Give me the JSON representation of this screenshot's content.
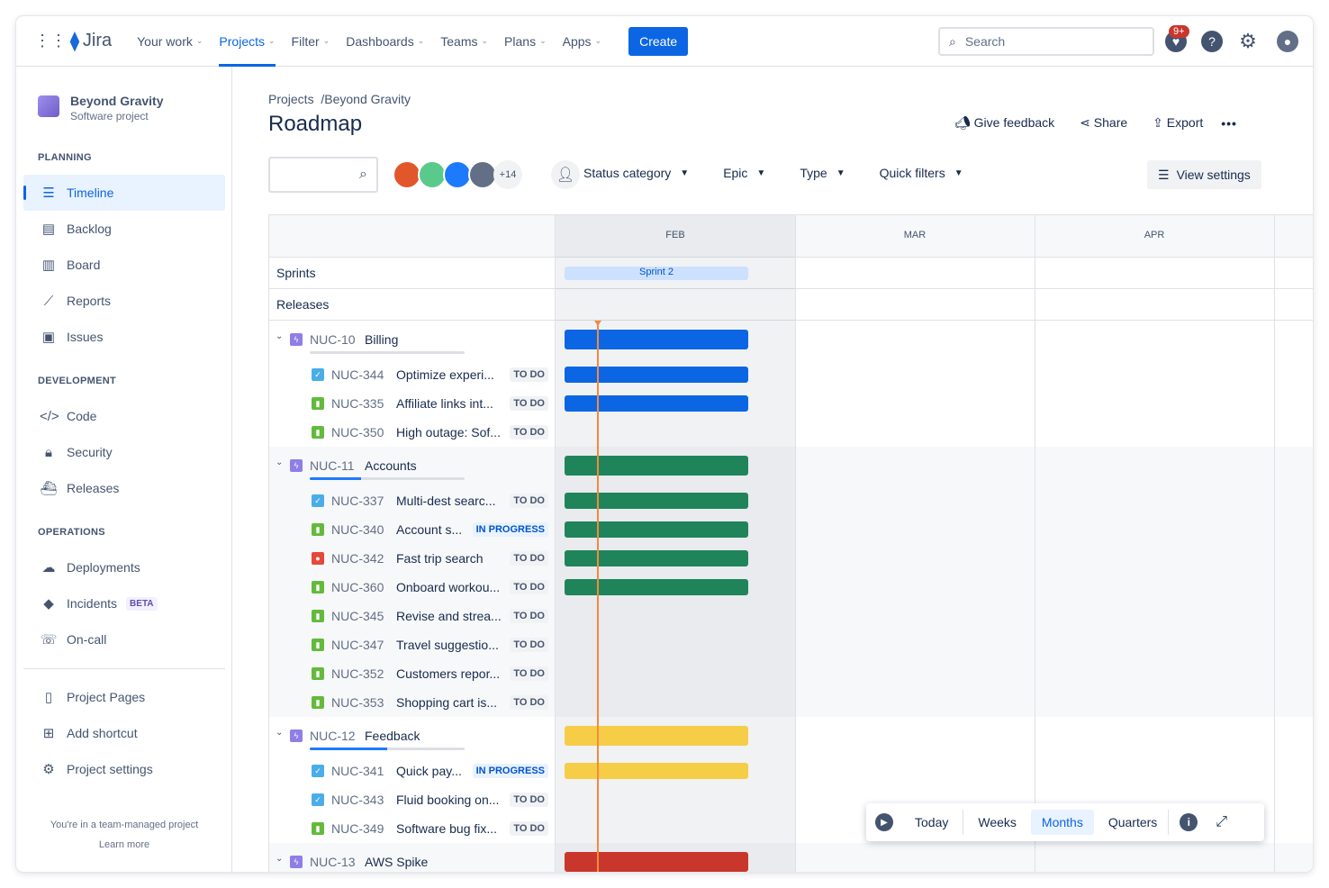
{
  "nav": {
    "logo": "Jira",
    "items": [
      {
        "label": "Your work"
      },
      {
        "label": "Projects",
        "active": true
      },
      {
        "label": "Filter"
      },
      {
        "label": "Dashboards"
      },
      {
        "label": "Teams"
      },
      {
        "label": "Plans"
      },
      {
        "label": "Apps"
      }
    ],
    "create": "Create",
    "search_placeholder": "Search",
    "notif_count": "9+"
  },
  "sidebar": {
    "project_name": "Beyond Gravity",
    "project_type": "Software project",
    "sections": [
      {
        "title": "PLANNING"
      },
      {
        "title": "DEVELOPMENT"
      },
      {
        "title": "OPERATIONS"
      }
    ],
    "items": [
      {
        "label": "Timeline",
        "icon": "timeline-icon",
        "active": true
      },
      {
        "label": "Backlog",
        "icon": "backlog-icon"
      },
      {
        "label": "Board",
        "icon": "board-icon"
      },
      {
        "label": "Reports",
        "icon": "reports-icon"
      },
      {
        "label": "Issues",
        "icon": "issues-icon"
      },
      {
        "label": "Code",
        "icon": "code-icon"
      },
      {
        "label": "Security",
        "icon": "lock-icon"
      },
      {
        "label": "Releases",
        "icon": "ship-icon"
      },
      {
        "label": "Deployments",
        "icon": "cloud-icon"
      },
      {
        "label": "Incidents",
        "icon": "incident-icon",
        "badge": "BETA"
      },
      {
        "label": "On-call",
        "icon": "phone-icon"
      },
      {
        "label": "Project Pages",
        "icon": "page-icon"
      },
      {
        "label": "Add shortcut",
        "icon": "add-shortcut-icon"
      },
      {
        "label": "Project settings",
        "icon": "gear-icon"
      }
    ],
    "footer": "You're in a team-managed project",
    "learn_more": "Learn more"
  },
  "breadcrumb": [
    "Projects",
    "Beyond Gravity"
  ],
  "title": "Roadmap",
  "actions": {
    "feedback": "Give feedback",
    "share": "Share",
    "export": "Export"
  },
  "filters": {
    "avatars_more": "+14",
    "status": "Status category",
    "epic": "Epic",
    "type": "Type",
    "quick": "Quick filters",
    "view_settings": "View settings"
  },
  "timeline": {
    "months": [
      "FEB",
      "MAR",
      "APR"
    ],
    "sprints_label": "Sprints",
    "sprint": "Sprint 2",
    "releases_label": "Releases",
    "colors": {
      "blue": "#0c66e4",
      "green": "#1f845a",
      "yellow": "#f5cd47",
      "red": "#c9372c",
      "today": "#f38a3f"
    },
    "epics": [
      {
        "key": "NUC-10",
        "name": "Billing",
        "color": "blue",
        "progress": 0,
        "children": [
          {
            "key": "NUC-344",
            "name": "Optimize experi...",
            "type": "task",
            "status": "TO DO",
            "bar": true
          },
          {
            "key": "NUC-335",
            "name": "Affiliate links int...",
            "type": "story",
            "status": "TO DO",
            "bar": true
          },
          {
            "key": "NUC-350",
            "name": "High outage: Sof...",
            "type": "story",
            "status": "TO DO",
            "bar": false
          }
        ]
      },
      {
        "key": "NUC-11",
        "name": "Accounts",
        "color": "green",
        "progress": 0.33,
        "children": [
          {
            "key": "NUC-337",
            "name": "Multi-dest searc...",
            "type": "task",
            "status": "TO DO",
            "bar": true
          },
          {
            "key": "NUC-340",
            "name": "Account s...",
            "type": "story",
            "status": "IN PROGRESS",
            "bar": true
          },
          {
            "key": "NUC-342",
            "name": "Fast trip search",
            "type": "bug",
            "status": "TO DO",
            "bar": true
          },
          {
            "key": "NUC-360",
            "name": "Onboard workou...",
            "type": "story",
            "status": "TO DO",
            "bar": true
          },
          {
            "key": "NUC-345",
            "name": "Revise and strea...",
            "type": "story",
            "status": "TO DO",
            "bar": false
          },
          {
            "key": "NUC-347",
            "name": "Travel suggestio...",
            "type": "story",
            "status": "TO DO",
            "bar": false
          },
          {
            "key": "NUC-352",
            "name": "Customers repor...",
            "type": "story",
            "status": "TO DO",
            "bar": false
          },
          {
            "key": "NUC-353",
            "name": "Shopping cart is...",
            "type": "story",
            "status": "TO DO",
            "bar": false
          }
        ]
      },
      {
        "key": "NUC-12",
        "name": "Feedback",
        "color": "yellow",
        "progress": 0.5,
        "children": [
          {
            "key": "NUC-341",
            "name": "Quick pay...",
            "type": "task",
            "status": "IN PROGRESS",
            "bar": true
          },
          {
            "key": "NUC-343",
            "name": "Fluid booking on...",
            "type": "task",
            "status": "TO DO",
            "bar": false
          },
          {
            "key": "NUC-349",
            "name": "Software bug fix...",
            "type": "story",
            "status": "TO DO",
            "bar": false
          }
        ]
      },
      {
        "key": "NUC-13",
        "name": "AWS Spike",
        "color": "red",
        "progress": 0,
        "children": []
      }
    ]
  },
  "zoom": {
    "today": "Today",
    "weeks": "Weeks",
    "months": "Months",
    "quarters": "Quarters",
    "selected": "Months"
  }
}
